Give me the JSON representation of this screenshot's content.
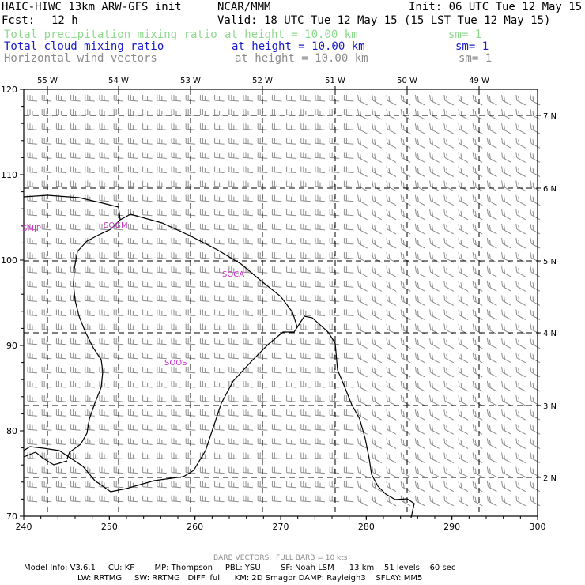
{
  "header": {
    "model": "HAIC-HIWC 13km ARW-GFS init",
    "org": "NCAR/MMM",
    "init": "Init: 06 UTC Tue 12 May 15",
    "fcst_label": "Fcst:",
    "fcst_value": "12 h",
    "valid": "Valid: 18 UTC Tue 12 May 15 (15 LST Tue 12 May 15)",
    "fields": [
      {
        "name": "Total precipitation mixing ratio",
        "height": "at height = 10.00 km",
        "sm": "sm= 1",
        "color": "#8fd98f"
      },
      {
        "name": "Total cloud mixing ratio",
        "height": "at height = 10.00 km",
        "sm": "sm= 1",
        "color": "#1a1acc"
      },
      {
        "name": "Horizontal wind vectors",
        "height": "at height = 10.00 km",
        "sm": "sm= 1",
        "color": "#8c8c8c"
      }
    ]
  },
  "map": {
    "lon_labels": [
      "55 W",
      "54 W",
      "53 W",
      "52 W",
      "51 W",
      "50 W",
      "49 W"
    ],
    "lat_labels": [
      "7 N",
      "6 N",
      "5 N",
      "4 N",
      "3 N",
      "2 N"
    ],
    "x_ticks": [
      "240",
      "250",
      "260",
      "270",
      "280",
      "290",
      "300"
    ],
    "y_ticks": [
      "70",
      "80",
      "90",
      "100",
      "110",
      "120"
    ],
    "stations": [
      "SMJP",
      "SOGM",
      "SOCA",
      "SOOS"
    ],
    "station_color": "#cc33cc",
    "barb_color": "#8c8c8c"
  },
  "footer": {
    "barb_note": "BARB VECTORS:  FULL BARB = 10 kts",
    "line1": "Model Info: V3.6.1     CU: KF        MP: Thompson     PBL: YSU        SF: Noah LSM      13 km    51 levels    60 sec",
    "line2": "LW: RRTMG     SW: RRTMG   DIFF: full     KM: 2D Smagor DAMP: Rayleigh3    SFLAY: MM5"
  }
}
